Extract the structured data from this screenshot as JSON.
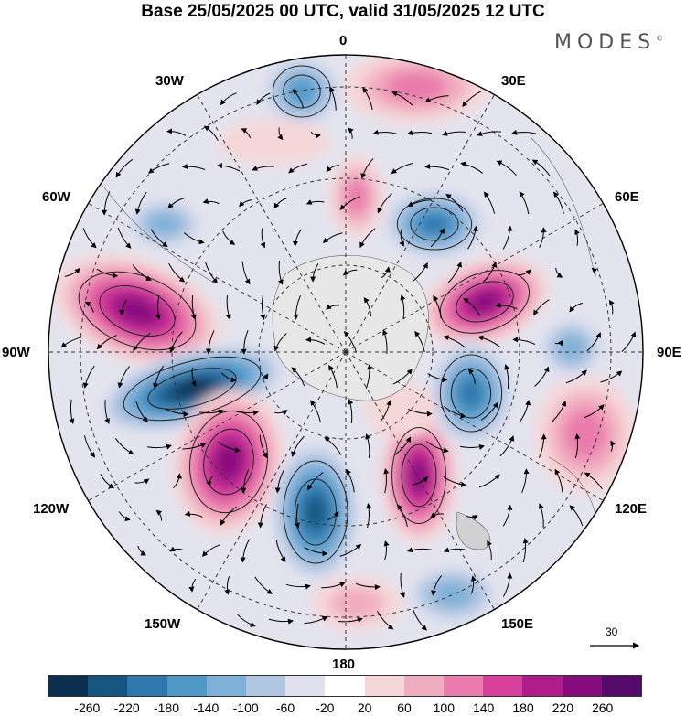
{
  "title": "Base 25/05/2025 00 UTC, valid 31/05/2025 12 UTC",
  "brand": "MODES",
  "brand_mark": "©",
  "longitude_labels": {
    "top": "0",
    "bottom": "180",
    "left": "90W",
    "right": "90E",
    "w30": "30W",
    "e30": "30E",
    "w60": "60W",
    "e60": "60E",
    "w120": "120W",
    "e120": "120E",
    "w150": "150W",
    "e150": "150E"
  },
  "vector_scale_label": "30",
  "colorbar": {
    "colors": [
      "#0d2f4f",
      "#15557f",
      "#2e78ad",
      "#4f98c8",
      "#7fb1d8",
      "#b2c6e2",
      "#dfe1ef",
      "#ffffff",
      "#f6d7d8",
      "#f1adc0",
      "#ea7bac",
      "#d8409b",
      "#b11e8c",
      "#860c7e",
      "#54096b"
    ],
    "ticks": [
      "-260",
      "-220",
      "-180",
      "-140",
      "-100",
      "-60",
      "-20",
      "20",
      "60",
      "100",
      "140",
      "180",
      "220",
      "260"
    ]
  }
}
